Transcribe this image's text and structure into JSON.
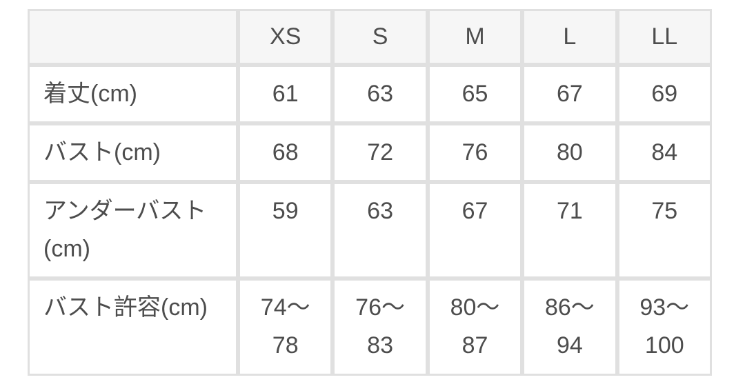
{
  "table": {
    "colors": {
      "header_background": "#f6f6f6",
      "border": "#e0e0e0",
      "text": "#4d4d4d",
      "row_background": "#ffffff"
    },
    "columns": [
      "",
      "XS",
      "S",
      "M",
      "L",
      "LL"
    ],
    "rows": [
      {
        "label": "着丈(cm)",
        "values": [
          "61",
          "63",
          "65",
          "67",
          "69"
        ]
      },
      {
        "label": "バスト(cm)",
        "values": [
          "68",
          "72",
          "76",
          "80",
          "84"
        ]
      },
      {
        "label": "アンダーバスト\n(cm)",
        "values": [
          "59",
          "63",
          "67",
          "71",
          "75"
        ]
      },
      {
        "label": "バスト許容(cm)",
        "values": [
          "74〜\n78",
          "76〜\n83",
          "80〜\n87",
          "86〜\n94",
          "93〜\n100"
        ]
      }
    ]
  }
}
